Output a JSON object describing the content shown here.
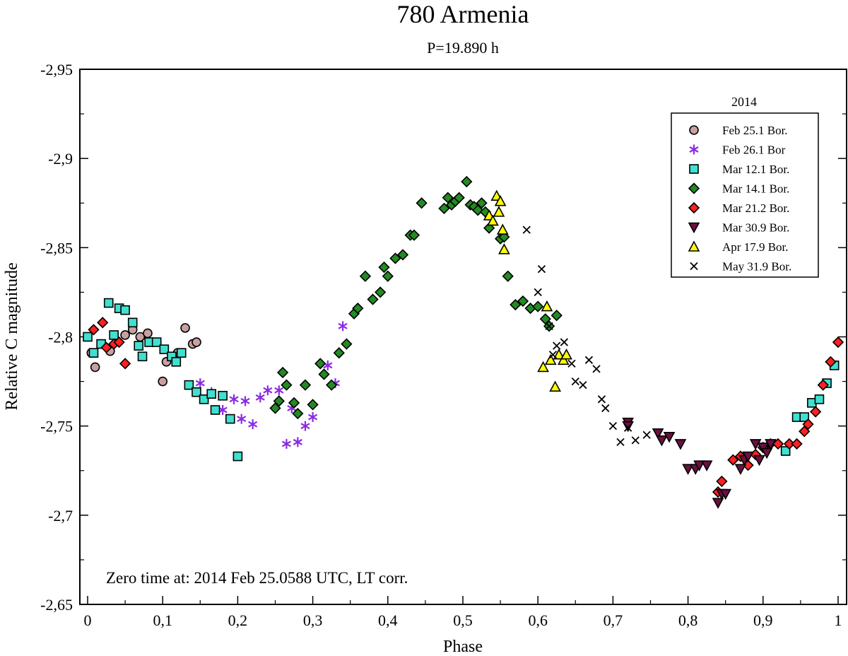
{
  "chart_data": {
    "type": "scatter",
    "title": "780 Armenia",
    "subtitle": "P=19.890 h",
    "xlabel": "Phase",
    "ylabel": "Relative C magnitude",
    "xlim": [
      0,
      1
    ],
    "ylim": [
      -2.95,
      -2.65
    ],
    "y_inverted": true,
    "x_ticks": [
      0,
      0.1,
      0.2,
      0.3,
      0.4,
      0.5,
      0.6,
      0.7,
      0.8,
      0.9,
      1
    ],
    "x_tick_labels": [
      "0",
      "0,1",
      "0,2",
      "0,3",
      "0,4",
      "0,5",
      "0,6",
      "0,7",
      "0,8",
      "0,9",
      "1"
    ],
    "y_ticks": [
      -2.95,
      -2.9,
      -2.85,
      -2.8,
      -2.75,
      -2.7,
      -2.65
    ],
    "y_tick_labels": [
      "-2,95",
      "-2,9",
      "-2,85",
      "-2,8",
      "-2,75",
      "-2,7",
      "-2,65"
    ],
    "grid": false,
    "legend_title": "2014",
    "legend_position": "top-right",
    "annotation": "Zero time at: 2014 Feb 25.0588 UTC, LT corr.",
    "series": [
      {
        "name": "Feb 25.1 Bor.",
        "marker": "circle",
        "color": "#c8a0a0",
        "x": [
          0.005,
          0.01,
          0.03,
          0.05,
          0.06,
          0.07,
          0.08,
          0.1,
          0.105,
          0.12,
          0.13,
          0.14,
          0.145
        ],
        "y": [
          -2.791,
          -2.783,
          -2.792,
          -2.801,
          -2.804,
          -2.8,
          -2.802,
          -2.775,
          -2.786,
          -2.791,
          -2.805,
          -2.796,
          -2.797
        ]
      },
      {
        "name": "Feb 26.1 Bor",
        "marker": "asterisk",
        "color": "#8a2be2",
        "x": [
          0.15,
          0.165,
          0.18,
          0.195,
          0.205,
          0.21,
          0.22,
          0.23,
          0.24,
          0.255,
          0.265,
          0.272,
          0.28,
          0.29,
          0.3,
          0.32,
          0.33,
          0.34
        ],
        "y": [
          -2.774,
          -2.769,
          -2.759,
          -2.765,
          -2.754,
          -2.764,
          -2.751,
          -2.766,
          -2.77,
          -2.77,
          -2.74,
          -2.76,
          -2.741,
          -2.75,
          -2.755,
          -2.784,
          -2.774,
          -2.806
        ]
      },
      {
        "name": "Mar 12.1 Bor.",
        "marker": "square",
        "color": "#40e0d0",
        "x": [
          0.0,
          0.008,
          0.018,
          0.028,
          0.035,
          0.042,
          0.05,
          0.06,
          0.068,
          0.073,
          0.082,
          0.092,
          0.102,
          0.112,
          0.118,
          0.125,
          0.135,
          0.145,
          0.155,
          0.165,
          0.17,
          0.18,
          0.19,
          0.2,
          0.93,
          0.945,
          0.955,
          0.965,
          0.975,
          0.985,
          0.995
        ],
        "y": [
          -2.8,
          -2.791,
          -2.796,
          -2.819,
          -2.801,
          -2.816,
          -2.815,
          -2.808,
          -2.795,
          -2.789,
          -2.797,
          -2.797,
          -2.793,
          -2.789,
          -2.786,
          -2.791,
          -2.773,
          -2.769,
          -2.765,
          -2.768,
          -2.759,
          -2.767,
          -2.754,
          -2.733,
          -2.736,
          -2.755,
          -2.755,
          -2.763,
          -2.765,
          -2.774,
          -2.784
        ]
      },
      {
        "name": "Mar 14.1 Bor.",
        "marker": "diamond",
        "color": "#228b22",
        "x": [
          0.25,
          0.255,
          0.26,
          0.265,
          0.275,
          0.28,
          0.29,
          0.3,
          0.31,
          0.315,
          0.325,
          0.335,
          0.345,
          0.355,
          0.36,
          0.37,
          0.38,
          0.39,
          0.395,
          0.4,
          0.41,
          0.42,
          0.43,
          0.435,
          0.445,
          0.475,
          0.48,
          0.485,
          0.49,
          0.495,
          0.505,
          0.51,
          0.515,
          0.52,
          0.525,
          0.53,
          0.535,
          0.55,
          0.555,
          0.56,
          0.57,
          0.58,
          0.59,
          0.6,
          0.61,
          0.615,
          0.625
        ],
        "y": [
          -2.76,
          -2.764,
          -2.78,
          -2.773,
          -2.763,
          -2.757,
          -2.773,
          -2.762,
          -2.785,
          -2.779,
          -2.773,
          -2.791,
          -2.796,
          -2.813,
          -2.816,
          -2.834,
          -2.821,
          -2.825,
          -2.839,
          -2.834,
          -2.844,
          -2.846,
          -2.857,
          -2.857,
          -2.875,
          -2.872,
          -2.878,
          -2.874,
          -2.876,
          -2.878,
          -2.887,
          -2.874,
          -2.873,
          -2.871,
          -2.875,
          -2.87,
          -2.861,
          -2.855,
          -2.856,
          -2.834,
          -2.818,
          -2.82,
          -2.816,
          -2.817,
          -2.81,
          -2.806,
          -2.812
        ]
      },
      {
        "name": "Mar 21.2 Bor.",
        "marker": "diamond",
        "color": "#ff2020",
        "x": [
          0.008,
          0.02,
          0.025,
          0.035,
          0.042,
          0.05,
          0.84,
          0.845,
          0.86,
          0.87,
          0.88,
          0.89,
          0.9,
          0.91,
          0.92,
          0.935,
          0.945,
          0.955,
          0.96,
          0.97,
          0.98,
          0.99,
          1.0
        ],
        "y": [
          -2.804,
          -2.808,
          -2.794,
          -2.796,
          -2.797,
          -2.785,
          -2.713,
          -2.719,
          -2.731,
          -2.733,
          -2.728,
          -2.734,
          -2.738,
          -2.74,
          -2.74,
          -2.74,
          -2.74,
          -2.747,
          -2.751,
          -2.758,
          -2.773,
          -2.786,
          -2.797
        ]
      },
      {
        "name": "Mar 30.9 Bor.",
        "marker": "triangle-down",
        "color": "#6b1040",
        "x": [
          0.76,
          0.765,
          0.775,
          0.79,
          0.8,
          0.81,
          0.815,
          0.825,
          0.84,
          0.845,
          0.85,
          0.87,
          0.875,
          0.88,
          0.89,
          0.895,
          0.9,
          0.905,
          0.91,
          0.72,
          0.72
        ],
        "y": [
          -2.746,
          -2.742,
          -2.744,
          -2.74,
          -2.726,
          -2.726,
          -2.728,
          -2.728,
          -2.707,
          -2.712,
          -2.712,
          -2.726,
          -2.731,
          -2.733,
          -2.74,
          -2.731,
          -2.738,
          -2.735,
          -2.74,
          -2.752,
          -2.75
        ]
      },
      {
        "name": "Apr 17.9 Bor.",
        "marker": "triangle-up",
        "color": "#ffff00",
        "x": [
          0.535,
          0.54,
          0.545,
          0.548,
          0.55,
          0.553,
          0.555,
          0.607,
          0.612,
          0.617,
          0.623,
          0.628,
          0.634,
          0.638
        ],
        "y": [
          -2.868,
          -2.865,
          -2.879,
          -2.87,
          -2.876,
          -2.86,
          -2.849,
          -2.783,
          -2.817,
          -2.787,
          -2.772,
          -2.79,
          -2.787,
          -2.79
        ]
      },
      {
        "name": "May 31.9 Bor.",
        "marker": "cross",
        "color": "#000000",
        "x": [
          0.585,
          0.6,
          0.605,
          0.615,
          0.62,
          0.625,
          0.635,
          0.645,
          0.65,
          0.66,
          0.668,
          0.678,
          0.685,
          0.69,
          0.7,
          0.71,
          0.72,
          0.73,
          0.745
        ],
        "y": [
          -2.86,
          -2.825,
          -2.838,
          -2.806,
          -2.79,
          -2.795,
          -2.797,
          -2.785,
          -2.775,
          -2.773,
          -2.787,
          -2.782,
          -2.765,
          -2.76,
          -2.75,
          -2.741,
          -2.749,
          -2.742,
          -2.745
        ]
      }
    ]
  }
}
